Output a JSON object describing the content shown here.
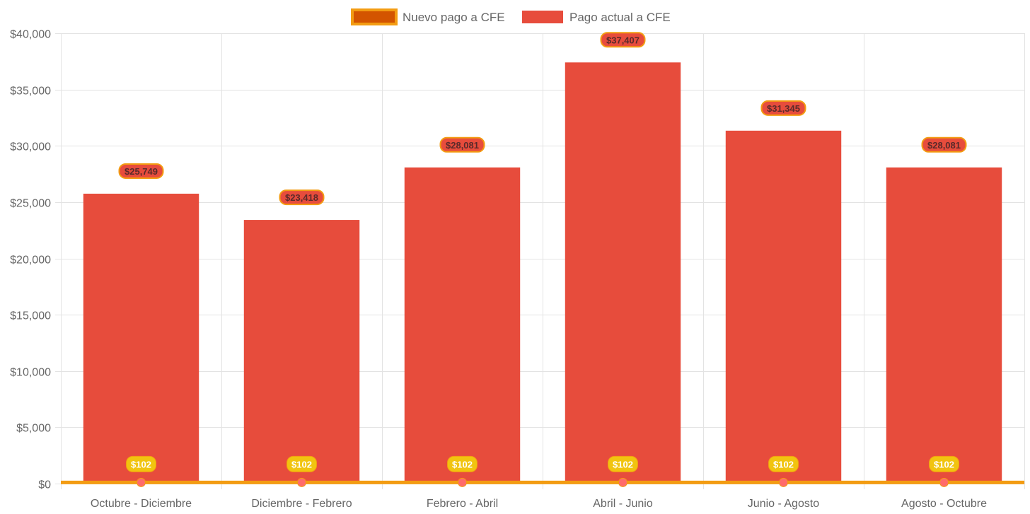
{
  "chart_data": {
    "type": "bar",
    "title": "",
    "xlabel": "",
    "ylabel": "",
    "ylim": [
      0,
      40000
    ],
    "y_ticks": [
      "$0",
      "$5,000",
      "$10,000",
      "$15,000",
      "$20,000",
      "$25,000",
      "$30,000",
      "$35,000",
      "$40,000"
    ],
    "y_tick_values": [
      0,
      5000,
      10000,
      15000,
      20000,
      25000,
      30000,
      35000,
      40000
    ],
    "grid": true,
    "legend_position": "top-center",
    "categories": [
      "Octubre - Diciembre",
      "Diciembre - Febrero",
      "Febrero - Abril",
      "Abril - Junio",
      "Junio - Agosto",
      "Agosto - Octubre"
    ],
    "series": [
      {
        "name": "Nuevo pago a CFE",
        "kind": "line",
        "color": "#f39c12",
        "fill": "#d35400",
        "point_color": "#ff6b6b",
        "values": [
          102,
          102,
          102,
          102,
          102,
          102
        ],
        "labels": [
          "$102",
          "$102",
          "$102",
          "$102",
          "$102",
          "$102"
        ]
      },
      {
        "name": "Pago actual a CFE",
        "kind": "bar",
        "color": "#e74c3c",
        "values": [
          25749,
          23418,
          28081,
          37407,
          31345,
          28081
        ],
        "labels": [
          "$25,749",
          "$23,418",
          "$28,081",
          "$37,407",
          "$31,345",
          "$28,081"
        ]
      }
    ]
  }
}
